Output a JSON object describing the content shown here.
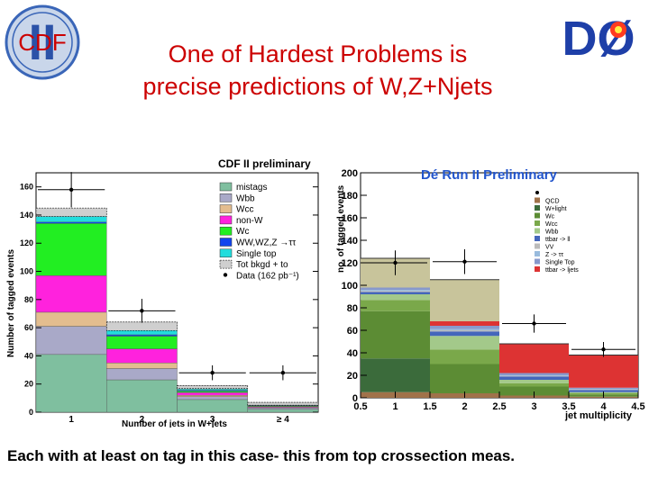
{
  "title": {
    "line1": "One of Hardest Problems is",
    "line2": "precise predictions of W,Z+Njets"
  },
  "caption": "Each with at least on tag in this case- this from top crossection meas.",
  "logos": {
    "cdf": {
      "letters": "CDF",
      "numeral": "II"
    },
    "d0": {
      "letters": "DØ"
    }
  },
  "colors": {
    "title": "#cc0000",
    "cdf_mistags": "#7fbf9f",
    "cdf_wbb": "#a9a9c8",
    "cdf_wcc": "#e3bd8f",
    "cdf_nonw": "#ff22dd",
    "cdf_wc": "#22ee22",
    "cdf_wwz": "#1144ee",
    "cdf_singletop": "#22dddd",
    "d0_qcd": "#a0724a",
    "d0_wlight": "#3b6b3b",
    "d0_wc": "#5c8c34",
    "d0_wcc": "#7aa84a",
    "d0_wbb": "#a3c98a",
    "d0_ttll": "#4466bb",
    "d0_vv": "#bbbbbb",
    "d0_ztautau": "#99bbdd",
    "d0_singletop": "#8899cc",
    "d0_ttljets": "#dd3333",
    "d0_top_band": "#c8c49b"
  },
  "chart_data": [
    {
      "type": "bar",
      "title": "CDF II preliminary",
      "xlabel": "Number of jets in W+jets",
      "ylabel": "Number of tagged events",
      "categories": [
        "1",
        "2",
        "3",
        "≥ 4"
      ],
      "ylim": [
        0,
        170
      ],
      "yticks": [
        "0",
        "20",
        "40",
        "60",
        "80",
        "100",
        "120",
        "140",
        "160"
      ],
      "stacked": true,
      "series": [
        {
          "name": "mistags",
          "color_key": "cdf_mistags",
          "values": [
            41,
            23,
            9,
            2
          ]
        },
        {
          "name": "Wbb",
          "color_key": "cdf_wbb",
          "values": [
            20,
            8,
            2,
            1
          ]
        },
        {
          "name": "Wcc",
          "color_key": "cdf_wcc",
          "values": [
            10,
            4,
            1,
            0.5
          ]
        },
        {
          "name": "non-W",
          "color_key": "cdf_nonw",
          "values": [
            26,
            10,
            2,
            0.5
          ]
        },
        {
          "name": "Wc",
          "color_key": "cdf_wc",
          "values": [
            37,
            9,
            1,
            0.5
          ]
        },
        {
          "name": "WW,WZ,Z →ττ",
          "color_key": "cdf_wwz",
          "values": [
            1,
            1,
            0.5,
            0.3
          ]
        },
        {
          "name": "Single top",
          "color_key": "cdf_singletop",
          "values": [
            4,
            3,
            1,
            0.5
          ]
        }
      ],
      "band": {
        "name": "Tot bkgd + to",
        "low": [
          139,
          58,
          17,
          5
        ],
        "high": [
          145,
          64,
          19,
          7
        ]
      },
      "data": {
        "name": "Data (162 pb⁻¹)",
        "values": [
          158,
          72,
          28,
          28
        ]
      },
      "legend_position": "top-right"
    },
    {
      "type": "bar",
      "title": "Dé Run II Preliminary",
      "xlabel": "jet multiplicity",
      "ylabel": "no. of tagged events",
      "xlim": [
        0.5,
        4.5
      ],
      "xticks": [
        "0.5",
        "1",
        "1.5",
        "2",
        "2.5",
        "3",
        "3.5",
        "4",
        "4.5"
      ],
      "ylim": [
        0,
        200
      ],
      "yticks": [
        "0",
        "20",
        "40",
        "60",
        "80",
        "100",
        "120",
        "140",
        "160",
        "180",
        "200"
      ],
      "x_centers": [
        1,
        2,
        3,
        4
      ],
      "stacked": true,
      "series": [
        {
          "name": "QCD",
          "color_key": "d0_qcd",
          "values": [
            5,
            4,
            2,
            1
          ]
        },
        {
          "name": "W+light",
          "color_key": "d0_wlight",
          "values": [
            30,
            0,
            0,
            0
          ]
        },
        {
          "name": "Wc",
          "color_key": "d0_wc",
          "values": [
            42,
            26,
            8,
            2
          ]
        },
        {
          "name": "Wcc",
          "color_key": "d0_wcc",
          "values": [
            10,
            13,
            3,
            1
          ]
        },
        {
          "name": "Wbb",
          "color_key": "d0_wbb",
          "values": [
            5,
            12,
            3,
            1
          ]
        },
        {
          "name": "ttbar -> ll",
          "color_key": "d0_ttll",
          "values": [
            2,
            4,
            3,
            2
          ]
        },
        {
          "name": "VV",
          "color_key": "d0_vv",
          "values": [
            1,
            1,
            0.5,
            0.5
          ]
        },
        {
          "name": "Z -> ττ",
          "color_key": "d0_ztautau",
          "values": [
            1,
            1,
            0.5,
            0.5
          ]
        },
        {
          "name": "Single Top",
          "color_key": "d0_singletop",
          "values": [
            2,
            3,
            2,
            1
          ]
        },
        {
          "name": "ttbar -> ljets",
          "color_key": "d0_ttljets",
          "values": [
            0,
            4,
            26,
            29
          ]
        },
        {
          "name": "",
          "color_key": "d0_top_band",
          "values": [
            26,
            37,
            0,
            0
          ]
        }
      ],
      "data": {
        "name": "Data",
        "values": [
          120,
          121,
          66,
          43
        ]
      },
      "legend_position": "top-right"
    }
  ]
}
